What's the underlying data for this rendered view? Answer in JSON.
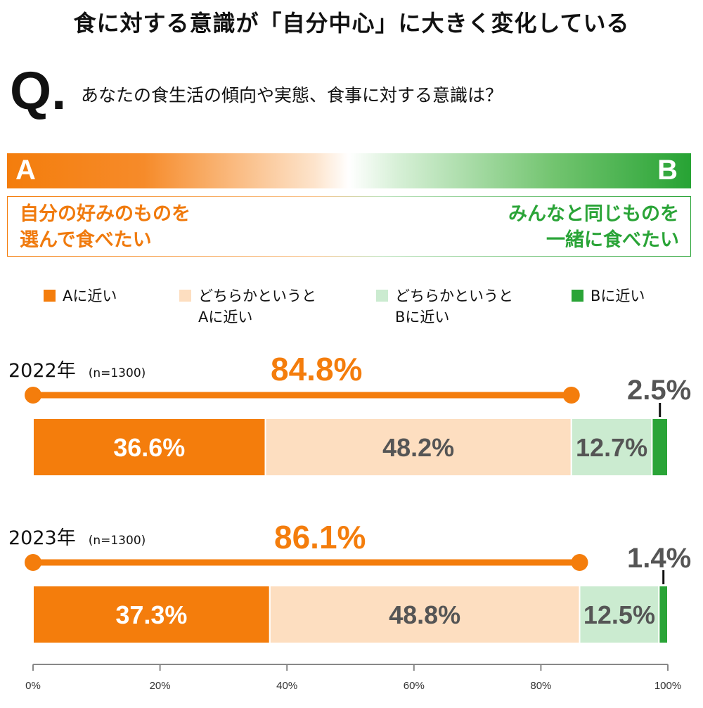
{
  "title": "食に対する意識が「自分中心」に大きく変化している",
  "question": {
    "mark": "Q.",
    "text": "あなたの食生活の傾向や実態、食事に対する意識は？"
  },
  "scale": {
    "a_letter": "A",
    "b_letter": "B",
    "a_desc": "自分の好みのものを\n選んで食べたい",
    "b_desc": "みんなと同じものを\n一緒に食べたい"
  },
  "colors": {
    "a_near": "#f47d0c",
    "a_lean": "#fddec0",
    "b_lean": "#cbebd0",
    "b_near": "#2aa437",
    "label_dark": "#555555"
  },
  "chart_data": {
    "type": "bar",
    "stacked": true,
    "orientation": "horizontal",
    "xlim": [
      0,
      100
    ],
    "x_ticks": [
      "0%",
      "20%",
      "40%",
      "60%",
      "80%",
      "100%"
    ],
    "legend": [
      "Aに近い",
      "どちらかというと\nAに近い",
      "どちらかというと\nBに近い",
      "Bに近い"
    ],
    "rows": [
      {
        "label": "2022年",
        "n": "(n=1300)",
        "values": [
          36.6,
          48.2,
          12.7,
          2.5
        ],
        "labels": [
          "36.6%",
          "48.2%",
          "12.7%",
          "2.5%"
        ],
        "a_total": "84.8%"
      },
      {
        "label": "2023年",
        "n": "(n=1300)",
        "values": [
          37.3,
          48.8,
          12.5,
          1.4
        ],
        "labels": [
          "37.3%",
          "48.8%",
          "12.5%",
          "1.4%"
        ],
        "a_total": "86.1%"
      }
    ]
  }
}
